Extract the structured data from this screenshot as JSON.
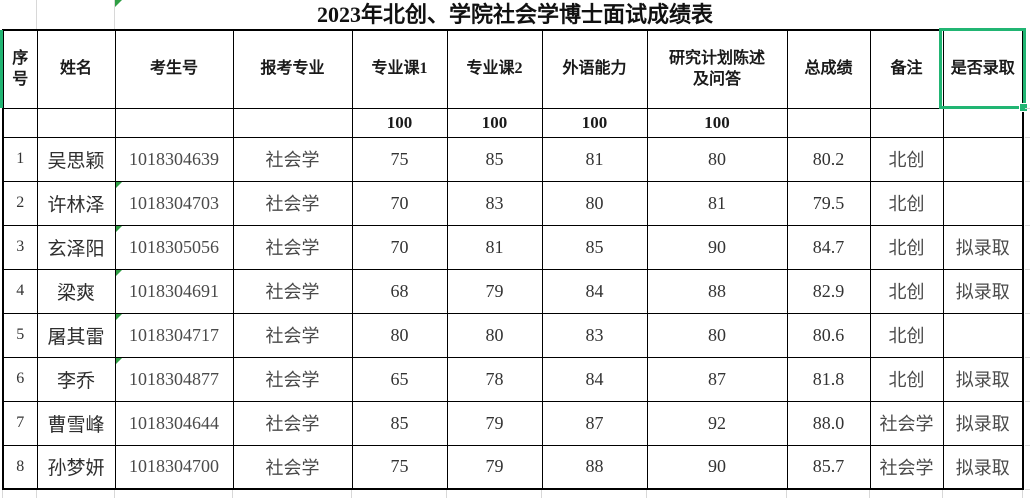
{
  "title": "2023年北创、学院社会学博士面试成绩表",
  "columns": [
    "序号",
    "姓名",
    "考生号",
    "报考专业",
    "专业课1",
    "专业课2",
    "外语能力",
    "研究计划陈述及问答",
    "总成绩",
    "备注",
    "是否录取"
  ],
  "max_scores": [
    "",
    "",
    "",
    "",
    "100",
    "100",
    "100",
    "100",
    "",
    "",
    ""
  ],
  "rows": [
    [
      "1",
      "吴思颖",
      "1018304639",
      "社会学",
      "75",
      "85",
      "81",
      "80",
      "80.2",
      "北创",
      ""
    ],
    [
      "2",
      "许林泽",
      "1018304703",
      "社会学",
      "70",
      "83",
      "80",
      "81",
      "79.5",
      "北创",
      ""
    ],
    [
      "3",
      "玄泽阳",
      "1018305056",
      "社会学",
      "70",
      "81",
      "85",
      "90",
      "84.7",
      "北创",
      "拟录取"
    ],
    [
      "4",
      "梁爽",
      "1018304691",
      "社会学",
      "68",
      "79",
      "84",
      "88",
      "82.9",
      "北创",
      "拟录取"
    ],
    [
      "5",
      "屠其雷",
      "1018304717",
      "社会学",
      "80",
      "80",
      "83",
      "80",
      "80.6",
      "北创",
      ""
    ],
    [
      "6",
      "李乔",
      "1018304877",
      "社会学",
      "65",
      "78",
      "84",
      "87",
      "81.8",
      "北创",
      "拟录取"
    ],
    [
      "7",
      "曹雪峰",
      "1018304644",
      "社会学",
      "85",
      "79",
      "87",
      "92",
      "88.0",
      "社会学",
      "拟录取"
    ],
    [
      "8",
      "孙梦妍",
      "1018304700",
      "社会学",
      "75",
      "79",
      "88",
      "90",
      "85.7",
      "社会学",
      "拟录取"
    ]
  ],
  "selection": {
    "selected_header": "是否录取"
  },
  "error_marker_row_indices": [
    1,
    2,
    3,
    4,
    5
  ],
  "colors": {
    "selection_green": "#21b573",
    "grid_line": "#d8d8d8",
    "border_black": "#000000",
    "error_green": "#2f9e44",
    "text_dark": "#333333",
    "text_gray": "#4a4a4a"
  }
}
